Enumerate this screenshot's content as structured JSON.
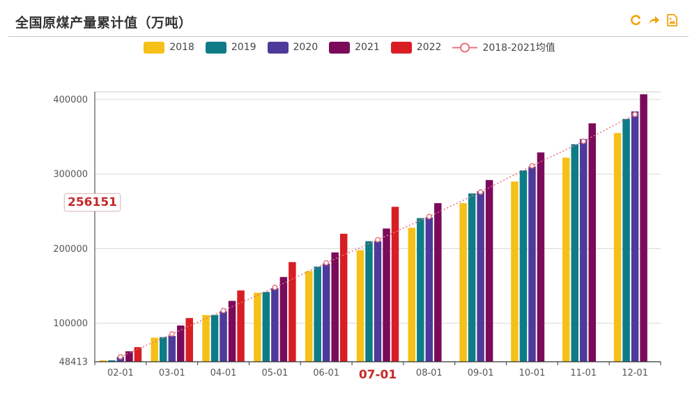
{
  "header": {
    "title": "全国原煤产量累计值（万吨）"
  },
  "toolbar": {
    "icons": [
      "refresh-icon",
      "share-icon",
      "save-image-icon"
    ],
    "accent_color": "#f0a30a"
  },
  "legend": {
    "items": [
      {
        "label": "2018",
        "color": "#f5c118"
      },
      {
        "label": "2019",
        "color": "#0e7c86"
      },
      {
        "label": "2020",
        "color": "#4e3a9a"
      },
      {
        "label": "2021",
        "color": "#7b0a5b"
      },
      {
        "label": "2022",
        "color": "#d81e24"
      },
      {
        "label": "2018-2021均值",
        "color": "#e8727f"
      }
    ]
  },
  "pointer": {
    "value": "256151"
  },
  "chart_data": {
    "type": "bar",
    "title": "全国原煤产量累计值（万吨）",
    "categories": [
      "02-01",
      "03-01",
      "04-01",
      "05-01",
      "06-01",
      "07-01",
      "08-01",
      "09-01",
      "10-01",
      "11-01",
      "12-01"
    ],
    "highlighted_category": "07-01",
    "y_ticks": [
      48413,
      100000,
      200000,
      300000,
      400000
    ],
    "ylim": [
      48413,
      410000
    ],
    "grid": true,
    "legend_position": "top",
    "series": [
      {
        "name": "2018",
        "color": "#f5c118",
        "values": [
          50400,
          80700,
          111000,
          141000,
          170000,
          198000,
          228000,
          261000,
          290000,
          322000,
          355000
        ]
      },
      {
        "name": "2019",
        "color": "#0e7c86",
        "values": [
          50300,
          81400,
          111200,
          142000,
          176000,
          210000,
          241000,
          274000,
          305000,
          340000,
          374000
        ]
      },
      {
        "name": "2020",
        "color": "#4e3a9a",
        "values": [
          55000,
          82900,
          116000,
          147000,
          180000,
          210000,
          242000,
          277000,
          310000,
          347000,
          384000
        ]
      },
      {
        "name": "2021",
        "color": "#7b0a5b",
        "values": [
          62500,
          97000,
          130000,
          162000,
          195000,
          227000,
          261000,
          292000,
          329000,
          368000,
          407000
        ]
      },
      {
        "name": "2022",
        "color": "#d81e24",
        "values": [
          68000,
          107000,
          144000,
          182000,
          220000,
          256151,
          null,
          null,
          null,
          null,
          null
        ]
      },
      {
        "name": "2018-2021均值",
        "type": "line",
        "color": "#e8727f",
        "values": [
          55000,
          85700,
          117000,
          148000,
          181000,
          212000,
          243000,
          276000,
          311000,
          344000,
          380000
        ]
      }
    ]
  }
}
